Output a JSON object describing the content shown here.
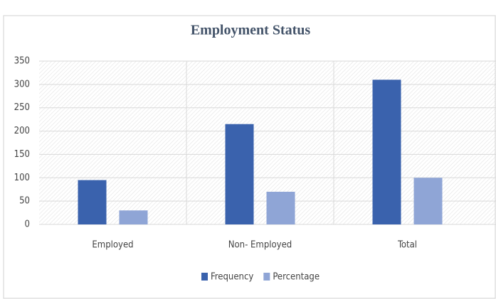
{
  "chart_data": {
    "type": "bar",
    "title": "Employment Status",
    "categories": [
      "Employed",
      "Non- Employed",
      "Total"
    ],
    "series": [
      {
        "name": "Frequency",
        "color": "#3a62ad",
        "values": [
          95,
          215,
          310
        ]
      },
      {
        "name": "Percentage",
        "color": "#8fa5d6",
        "values": [
          30,
          70,
          100
        ]
      }
    ],
    "ylim": [
      0,
      350
    ],
    "yticks": [
      0,
      50,
      100,
      150,
      200,
      250,
      300,
      350
    ],
    "grid": true,
    "legend": "bottom"
  }
}
